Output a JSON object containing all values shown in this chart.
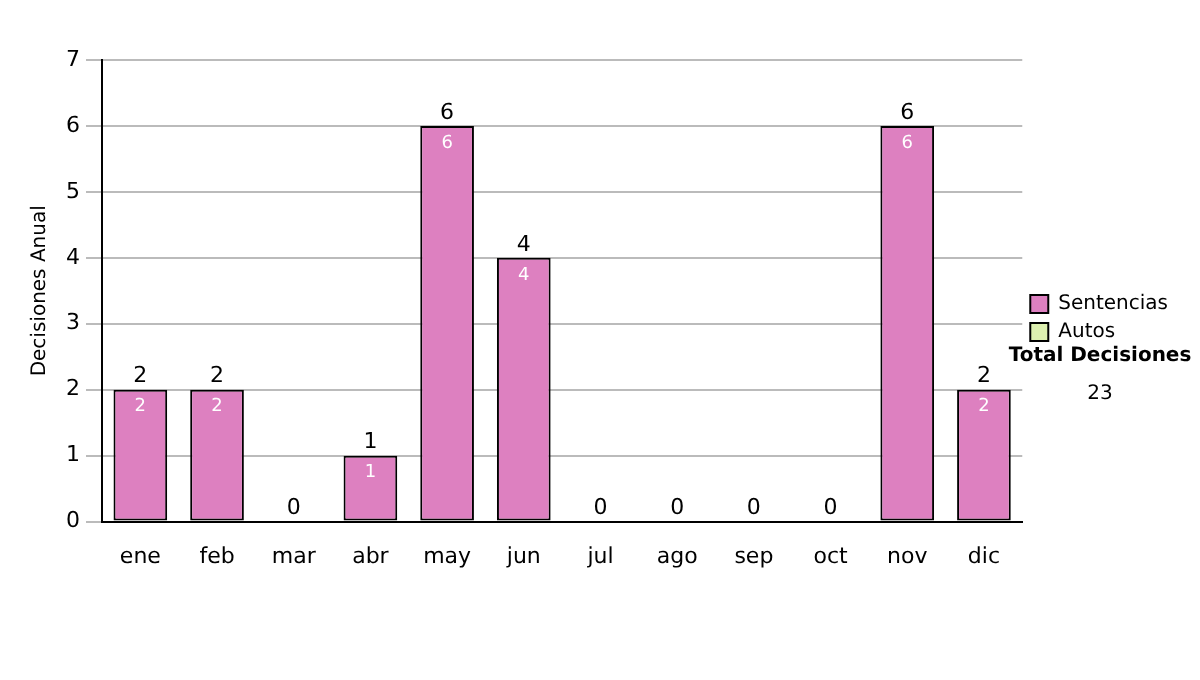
{
  "chart_data": {
    "type": "bar",
    "ylabel": "Decisiones Anual",
    "stacked": true,
    "categories": [
      "ene",
      "feb",
      "mar",
      "abr",
      "may",
      "jun",
      "jul",
      "ago",
      "sep",
      "oct",
      "nov",
      "dic"
    ],
    "series": [
      {
        "name": "Sentencias",
        "color": "#dd80c0",
        "values": [
          2,
          2,
          0,
          1,
          6,
          4,
          0,
          0,
          0,
          0,
          6,
          2
        ],
        "value_labels": [
          "2",
          "2",
          null,
          "1",
          "6",
          "4",
          null,
          null,
          null,
          null,
          "6",
          "2"
        ]
      },
      {
        "name": "Autos",
        "color": "#ddf0b0",
        "values": [
          0,
          0,
          0,
          0,
          0,
          0,
          0,
          0,
          0,
          0,
          0,
          0
        ]
      }
    ],
    "totals": [
      "2",
      "2",
      "0",
      "1",
      "6",
      "4",
      "0",
      "0",
      "0",
      "0",
      "6",
      "2"
    ],
    "ylim": [
      0,
      7
    ],
    "yticks": [
      0,
      1,
      2,
      3,
      4,
      5,
      6,
      7
    ],
    "grid": "y",
    "legend": "right",
    "annotations": [
      "Total Decisiones",
      "23"
    ]
  }
}
